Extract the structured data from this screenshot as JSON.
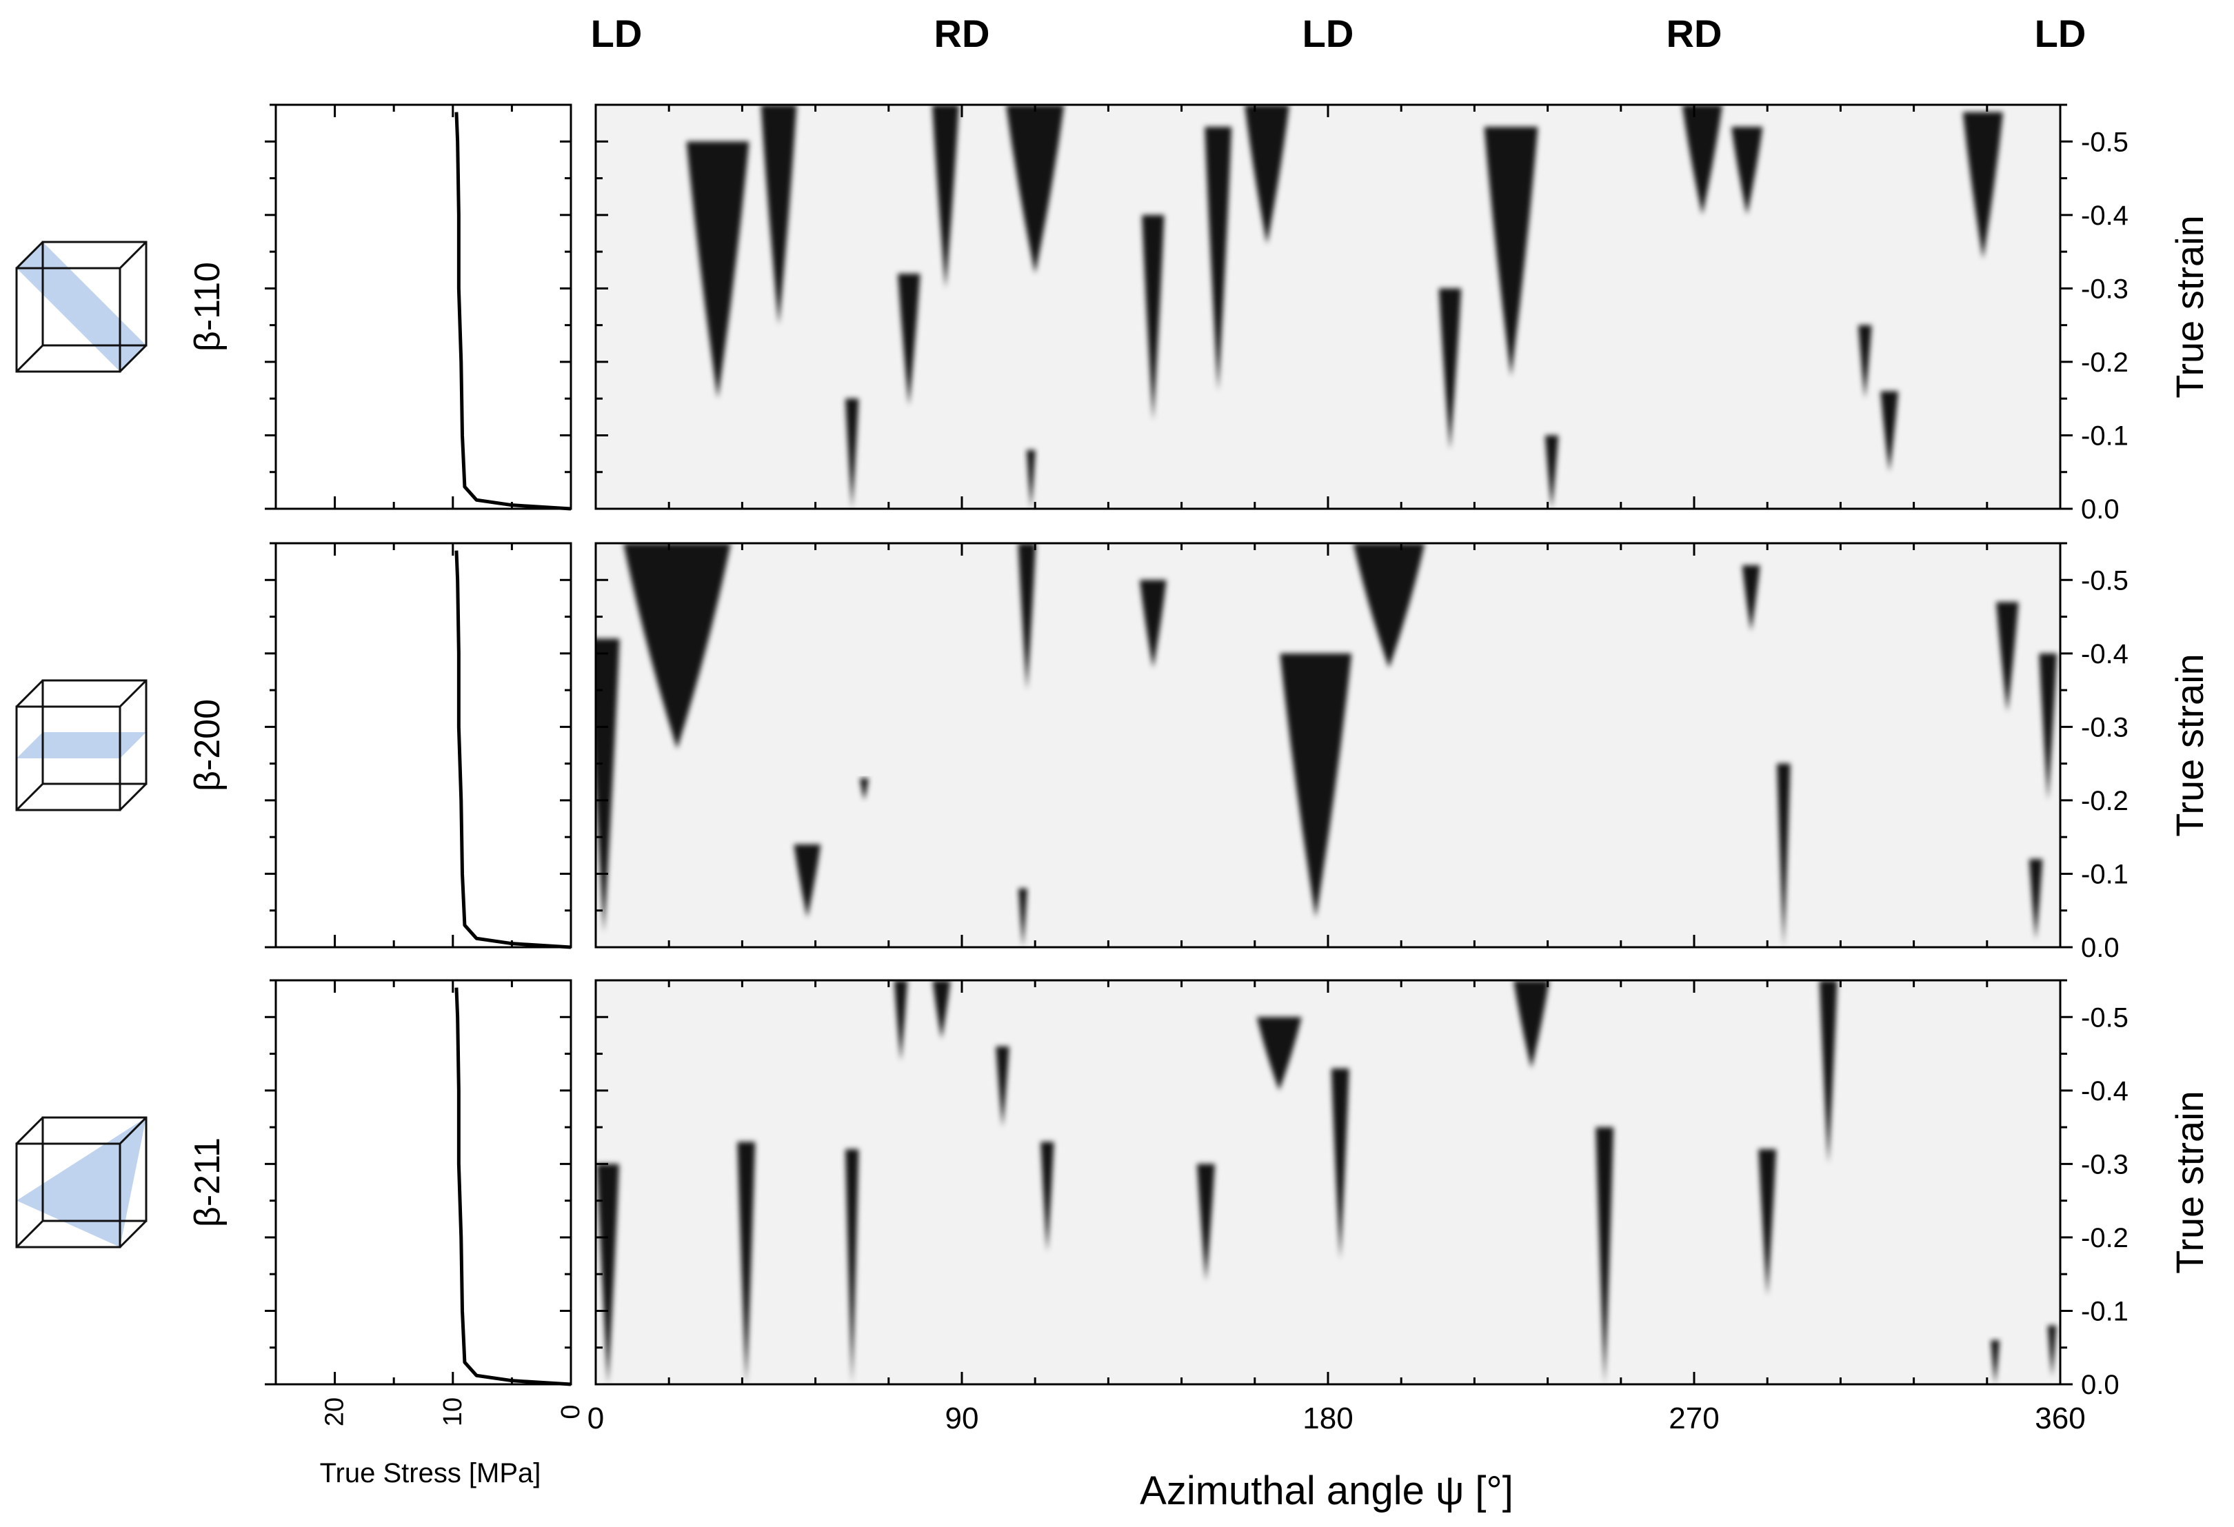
{
  "figure": {
    "orientation_labels": [
      "LD",
      "RD",
      "LD",
      "RD",
      "LD"
    ],
    "stress_axis": {
      "label": "True Stress [MPa]",
      "ticks": [
        20,
        10,
        0
      ],
      "range": [
        25,
        0
      ]
    },
    "angle_axis": {
      "label": "Azimuthal angle ψ [°]",
      "ticks": [
        0,
        90,
        180,
        270,
        360
      ],
      "range": [
        0,
        360
      ]
    },
    "strain_axis": {
      "label": "True strain",
      "ticks": [
        "0.0",
        "-0.1",
        "-0.2",
        "-0.3",
        "-0.4",
        "-0.5"
      ],
      "range": [
        0,
        -0.55
      ]
    },
    "colors": {
      "map_background": "#f2f2f2",
      "intensity_high": "#000000",
      "plane_fill": "#a9c4e8",
      "axis": "#000000"
    }
  },
  "chart_data": [
    {
      "type": "line",
      "panel": "β-110",
      "icon": "cube-110-plane-icon",
      "xlabel": "True Stress [MPa]",
      "ylabel": "True strain",
      "xlim": [
        25,
        0
      ],
      "ylim": [
        0,
        -0.55
      ],
      "series": [
        {
          "x": [
            0,
            2,
            5,
            8,
            9,
            9.2,
            9.3,
            9.5,
            9.5,
            9.6,
            9.7
          ],
          "y": [
            0,
            -0.002,
            -0.005,
            -0.012,
            -0.03,
            -0.1,
            -0.2,
            -0.3,
            -0.4,
            -0.5,
            -0.54
          ]
        }
      ]
    },
    {
      "type": "heatmap",
      "panel": "β-110",
      "xlabel": "Azimuthal angle ψ [°]",
      "ylabel": "True strain",
      "xlim": [
        0,
        360
      ],
      "ylim": [
        0,
        -0.55
      ],
      "streaks": [
        {
          "psi": 30,
          "strain_start": -0.5,
          "strain_end": -0.15,
          "width": 14
        },
        {
          "psi": 45,
          "strain_start": -0.55,
          "strain_end": -0.25,
          "width": 8
        },
        {
          "psi": 63,
          "strain_start": -0.15,
          "strain_end": 0.0,
          "width": 3
        },
        {
          "psi": 77,
          "strain_start": -0.32,
          "strain_end": -0.14,
          "width": 5
        },
        {
          "psi": 86,
          "strain_start": -0.55,
          "strain_end": -0.3,
          "width": 6
        },
        {
          "psi": 108,
          "strain_start": -0.55,
          "strain_end": -0.32,
          "width": 13
        },
        {
          "psi": 107,
          "strain_start": -0.08,
          "strain_end": 0.0,
          "width": 2
        },
        {
          "psi": 137,
          "strain_start": -0.4,
          "strain_end": -0.12,
          "width": 5
        },
        {
          "psi": 153,
          "strain_start": -0.52,
          "strain_end": -0.16,
          "width": 6
        },
        {
          "psi": 165,
          "strain_start": -0.55,
          "strain_end": -0.36,
          "width": 10
        },
        {
          "psi": 210,
          "strain_start": -0.3,
          "strain_end": -0.08,
          "width": 5
        },
        {
          "psi": 225,
          "strain_start": -0.52,
          "strain_end": -0.18,
          "width": 12
        },
        {
          "psi": 235,
          "strain_start": -0.1,
          "strain_end": 0.0,
          "width": 3
        },
        {
          "psi": 272,
          "strain_start": -0.55,
          "strain_end": -0.4,
          "width": 9
        },
        {
          "psi": 283,
          "strain_start": -0.52,
          "strain_end": -0.4,
          "width": 7
        },
        {
          "psi": 312,
          "strain_start": -0.25,
          "strain_end": -0.15,
          "width": 3
        },
        {
          "psi": 318,
          "strain_start": -0.16,
          "strain_end": -0.05,
          "width": 4
        },
        {
          "psi": 341,
          "strain_start": -0.54,
          "strain_end": -0.34,
          "width": 9
        }
      ]
    },
    {
      "type": "line",
      "panel": "β-200",
      "icon": "cube-200-plane-icon",
      "xlabel": "True Stress [MPa]",
      "ylabel": "True strain",
      "xlim": [
        25,
        0
      ],
      "ylim": [
        0,
        -0.55
      ],
      "series": [
        {
          "x": [
            0,
            2,
            5,
            8,
            9,
            9.2,
            9.3,
            9.5,
            9.5,
            9.6,
            9.7
          ],
          "y": [
            0,
            -0.002,
            -0.005,
            -0.012,
            -0.03,
            -0.1,
            -0.2,
            -0.3,
            -0.4,
            -0.5,
            -0.54
          ]
        }
      ]
    },
    {
      "type": "heatmap",
      "panel": "β-200",
      "xlabel": "Azimuthal angle ψ [°]",
      "ylabel": "True strain",
      "xlim": [
        0,
        360
      ],
      "ylim": [
        0,
        -0.55
      ],
      "streaks": [
        {
          "psi": 2,
          "strain_start": -0.42,
          "strain_end": -0.02,
          "width": 7
        },
        {
          "psi": 20,
          "strain_start": -0.55,
          "strain_end": -0.27,
          "width": 24
        },
        {
          "psi": 52,
          "strain_start": -0.14,
          "strain_end": -0.04,
          "width": 6
        },
        {
          "psi": 66,
          "strain_start": -0.23,
          "strain_end": -0.2,
          "width": 2
        },
        {
          "psi": 106,
          "strain_start": -0.55,
          "strain_end": -0.35,
          "width": 4
        },
        {
          "psi": 105,
          "strain_start": -0.08,
          "strain_end": 0.0,
          "width": 2
        },
        {
          "psi": 137,
          "strain_start": -0.5,
          "strain_end": -0.38,
          "width": 6
        },
        {
          "psi": 177,
          "strain_start": -0.4,
          "strain_end": -0.04,
          "width": 16
        },
        {
          "psi": 195,
          "strain_start": -0.55,
          "strain_end": -0.38,
          "width": 16
        },
        {
          "psi": 284,
          "strain_start": -0.52,
          "strain_end": -0.43,
          "width": 4
        },
        {
          "psi": 292,
          "strain_start": -0.25,
          "strain_end": 0.0,
          "width": 3
        },
        {
          "psi": 347,
          "strain_start": -0.47,
          "strain_end": -0.32,
          "width": 5
        },
        {
          "psi": 357,
          "strain_start": -0.4,
          "strain_end": -0.2,
          "width": 4
        },
        {
          "psi": 354,
          "strain_start": -0.12,
          "strain_end": -0.01,
          "width": 3
        }
      ]
    },
    {
      "type": "line",
      "panel": "β-211",
      "icon": "cube-211-plane-icon",
      "xlabel": "True Stress [MPa]",
      "ylabel": "True strain",
      "xlim": [
        25,
        0
      ],
      "ylim": [
        0,
        -0.55
      ],
      "series": [
        {
          "x": [
            0,
            2,
            5,
            8,
            9,
            9.2,
            9.3,
            9.5,
            9.5,
            9.6,
            9.7
          ],
          "y": [
            0,
            -0.002,
            -0.005,
            -0.012,
            -0.03,
            -0.1,
            -0.2,
            -0.3,
            -0.4,
            -0.5,
            -0.54
          ]
        }
      ]
    },
    {
      "type": "heatmap",
      "panel": "β-211",
      "xlabel": "Azimuthal angle ψ [°]",
      "ylabel": "True strain",
      "xlim": [
        0,
        360
      ],
      "ylim": [
        0,
        -0.55
      ],
      "streaks": [
        {
          "psi": 3,
          "strain_start": -0.3,
          "strain_end": 0.0,
          "width": 5
        },
        {
          "psi": 37,
          "strain_start": -0.33,
          "strain_end": 0.0,
          "width": 4
        },
        {
          "psi": 63,
          "strain_start": -0.32,
          "strain_end": 0.0,
          "width": 3
        },
        {
          "psi": 75,
          "strain_start": -0.55,
          "strain_end": -0.44,
          "width": 3
        },
        {
          "psi": 85,
          "strain_start": -0.55,
          "strain_end": -0.47,
          "width": 4
        },
        {
          "psi": 100,
          "strain_start": -0.46,
          "strain_end": -0.35,
          "width": 3
        },
        {
          "psi": 111,
          "strain_start": -0.33,
          "strain_end": -0.18,
          "width": 3
        },
        {
          "psi": 150,
          "strain_start": -0.3,
          "strain_end": -0.14,
          "width": 4
        },
        {
          "psi": 168,
          "strain_start": -0.5,
          "strain_end": -0.4,
          "width": 10
        },
        {
          "psi": 183,
          "strain_start": -0.43,
          "strain_end": -0.17,
          "width": 4
        },
        {
          "psi": 230,
          "strain_start": -0.55,
          "strain_end": -0.43,
          "width": 8
        },
        {
          "psi": 248,
          "strain_start": -0.35,
          "strain_end": 0.0,
          "width": 4
        },
        {
          "psi": 288,
          "strain_start": -0.32,
          "strain_end": -0.12,
          "width": 4
        },
        {
          "psi": 303,
          "strain_start": -0.55,
          "strain_end": -0.3,
          "width": 4
        },
        {
          "psi": 344,
          "strain_start": -0.06,
          "strain_end": 0.0,
          "width": 2
        },
        {
          "psi": 358,
          "strain_start": -0.08,
          "strain_end": -0.01,
          "width": 2
        }
      ]
    }
  ]
}
